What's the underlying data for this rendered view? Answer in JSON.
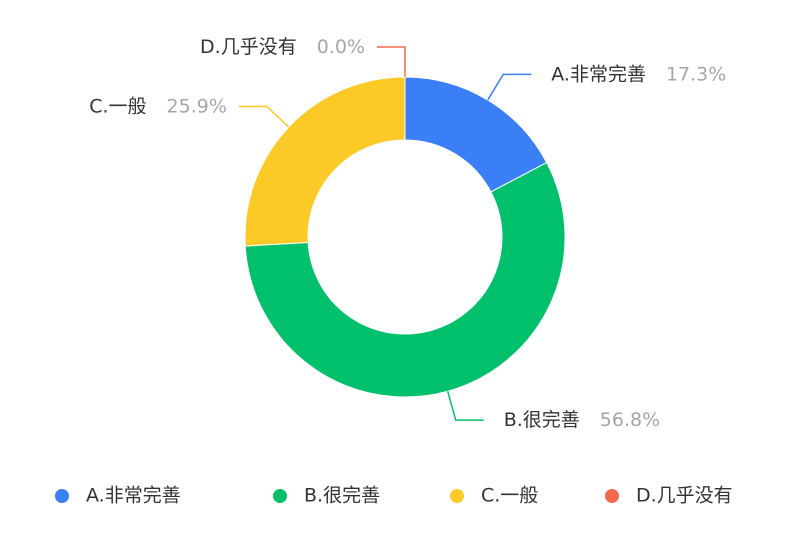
{
  "chart_data": {
    "type": "pie",
    "categories": [
      "A.非常完善",
      "B.很完善",
      "C.一般",
      "D.几乎没有"
    ],
    "values": [
      17.3,
      56.8,
      25.9,
      0.0
    ],
    "value_labels": [
      "17.3%",
      "56.8%",
      "25.9%",
      "0.0%"
    ],
    "colors": [
      "#3a7ff6",
      "#00c06b",
      "#fcca27",
      "#f4694e"
    ],
    "donut": true,
    "legend": "bottom"
  }
}
